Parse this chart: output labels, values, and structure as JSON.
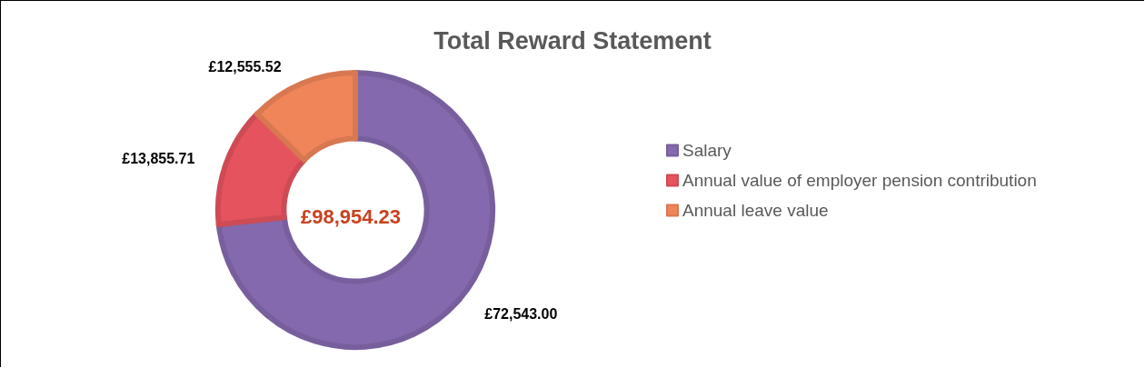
{
  "chart_data": {
    "type": "donut",
    "title": "Total Reward Statement",
    "categories": [
      "Salary",
      "Annual value of employer pension contribution",
      "Annual leave value"
    ],
    "values": [
      72543.0,
      13855.71,
      12555.52
    ],
    "colors": [
      "#8469ae",
      "#e5535f",
      "#f0855a"
    ],
    "value_labels": [
      "£72,543.00",
      "£13,855.71",
      "£12,555.52"
    ],
    "annotations": [
      "£98,954.23"
    ],
    "legend": "right"
  }
}
